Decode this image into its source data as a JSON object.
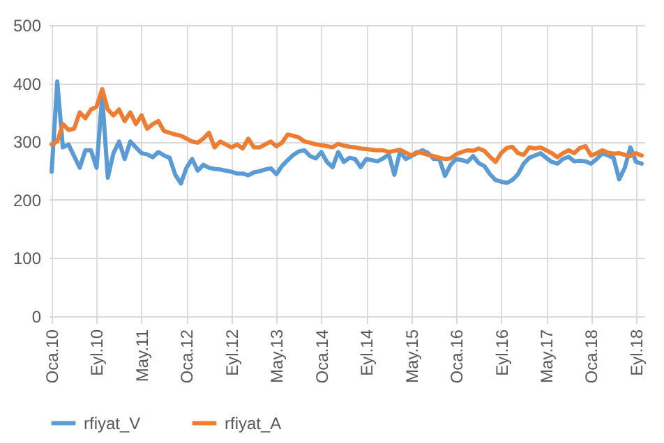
{
  "chart_data": {
    "type": "line",
    "categories": [
      "Oca.10",
      null,
      null,
      null,
      null,
      null,
      null,
      null,
      "Eyl.10",
      null,
      null,
      null,
      null,
      null,
      null,
      null,
      "May.11",
      null,
      null,
      null,
      null,
      null,
      null,
      null,
      "Oca.12",
      null,
      null,
      null,
      null,
      null,
      null,
      null,
      "Eyl.12",
      null,
      null,
      null,
      null,
      null,
      null,
      null,
      "May.13",
      null,
      null,
      null,
      null,
      null,
      null,
      null,
      "Oca.14",
      null,
      null,
      null,
      null,
      null,
      null,
      null,
      "Eyl.14",
      null,
      null,
      null,
      null,
      null,
      null,
      null,
      "May.15",
      null,
      null,
      null,
      null,
      null,
      null,
      null,
      "Oca.16",
      null,
      null,
      null,
      null,
      null,
      null,
      null,
      "Eyl.16",
      null,
      null,
      null,
      null,
      null,
      null,
      null,
      "May.17",
      null,
      null,
      null,
      null,
      null,
      null,
      null,
      "Oca.18",
      null,
      null,
      null,
      null,
      null,
      null,
      null,
      "Eyl.18",
      null
    ],
    "series": [
      {
        "name": "rfiyat_V",
        "color": "#5b9bd5",
        "values": [
          248,
          403,
          290,
          295,
          275,
          255,
          285,
          285,
          255,
          378,
          238,
          280,
          300,
          270,
          300,
          290,
          280,
          278,
          273,
          282,
          276,
          272,
          243,
          228,
          255,
          270,
          250,
          260,
          255,
          253,
          252,
          250,
          248,
          245,
          245,
          242,
          247,
          249,
          252,
          254,
          244,
          258,
          268,
          277,
          283,
          285,
          275,
          271,
          282,
          265,
          256,
          282,
          265,
          272,
          270,
          256,
          270,
          268,
          266,
          271,
          278,
          243,
          283,
          270,
          275,
          280,
          285,
          280,
          270,
          270,
          241,
          260,
          270,
          268,
          265,
          275,
          263,
          258,
          244,
          234,
          231,
          229,
          234,
          244,
          262,
          272,
          276,
          280,
          272,
          265,
          262,
          270,
          274,
          266,
          267,
          266,
          262,
          270,
          280,
          276,
          272,
          235,
          255,
          290,
          265,
          262
        ]
      },
      {
        "name": "rfiyat_A",
        "color": "#ed7d31",
        "values": [
          295,
          300,
          330,
          320,
          322,
          350,
          340,
          355,
          360,
          390,
          355,
          345,
          355,
          335,
          350,
          330,
          345,
          322,
          330,
          335,
          318,
          315,
          312,
          310,
          305,
          300,
          298,
          305,
          315,
          290,
          300,
          295,
          290,
          295,
          288,
          305,
          290,
          290,
          295,
          300,
          292,
          298,
          312,
          310,
          307,
          300,
          298,
          295,
          294,
          292,
          290,
          296,
          293,
          291,
          290,
          288,
          287,
          286,
          285,
          285,
          282,
          284,
          286,
          281,
          276,
          282,
          280,
          277,
          275,
          272,
          270,
          271,
          278,
          282,
          285,
          284,
          288,
          284,
          274,
          265,
          280,
          289,
          291,
          280,
          277,
          290,
          288,
          290,
          285,
          280,
          273,
          280,
          285,
          280,
          289,
          292,
          276,
          280,
          285,
          281,
          279,
          280,
          277,
          275,
          280,
          276
        ]
      }
    ],
    "ylim": [
      0,
      500
    ],
    "yticks": [
      0,
      100,
      200,
      300,
      400,
      500
    ],
    "grid": true,
    "legend": "bottom"
  }
}
